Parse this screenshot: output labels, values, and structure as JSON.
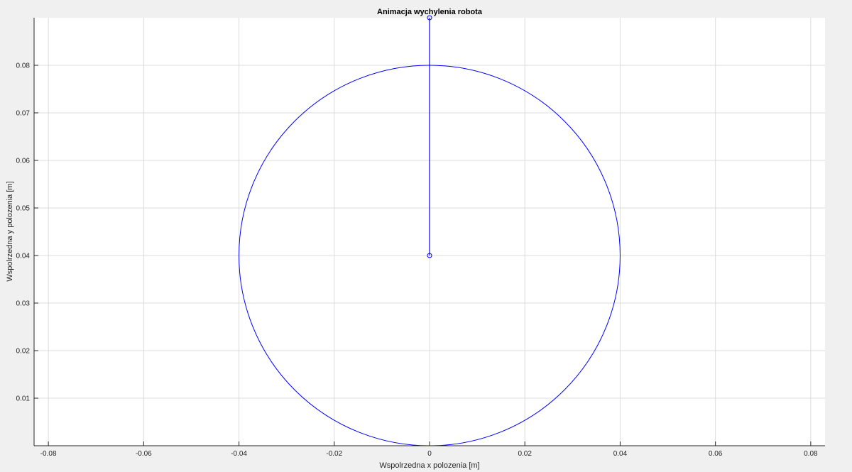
{
  "chart_data": {
    "type": "line",
    "title": "Animacja wychylenia robota",
    "xlabel": "Wspolrzedna x polozenia [m]",
    "ylabel": "Wspolrzedna y polozenia [m]",
    "xlim": [
      -0.083,
      0.083
    ],
    "ylim": [
      0,
      0.09
    ],
    "grid": true,
    "x_ticks": [
      -0.08,
      -0.06,
      -0.04,
      -0.02,
      0,
      0.02,
      0.04,
      0.06,
      0.08
    ],
    "x_tick_labels": [
      "-0.08",
      "-0.06",
      "-0.04",
      "-0.02",
      "0",
      "0.02",
      "0.04",
      "0.06",
      "0.08"
    ],
    "y_ticks": [
      0.01,
      0.02,
      0.03,
      0.04,
      0.05,
      0.06,
      0.07,
      0.08
    ],
    "y_tick_labels": [
      "0.01",
      "0.02",
      "0.03",
      "0.04",
      "0.05",
      "0.06",
      "0.07",
      "0.08"
    ],
    "series": [
      {
        "kind": "circle",
        "center": [
          0,
          0.04
        ],
        "radius": 0.04,
        "color": "#0000ff"
      },
      {
        "kind": "line-with-markers",
        "x": [
          0,
          0
        ],
        "y": [
          0.04,
          0.09
        ],
        "marker": "circle",
        "color": "#0000ff"
      }
    ]
  }
}
